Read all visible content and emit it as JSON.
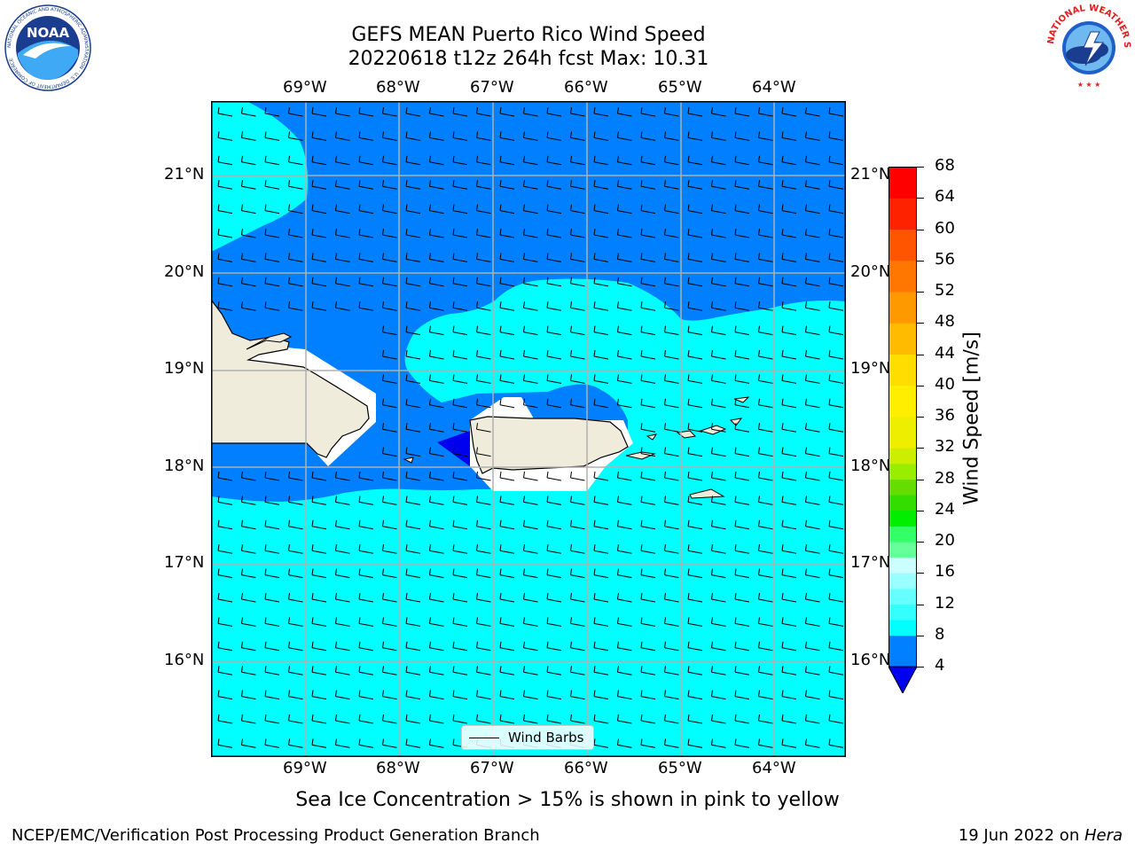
{
  "title": {
    "line1": "GEFS MEAN Puerto Rico Wind Speed",
    "line2": "20220618 t12z 264h fcst   Max: 10.31"
  },
  "logos": {
    "left": {
      "text": "NOAA",
      "ring_text": "NATIONAL OCEANIC AND ATMOSPHERIC ADMINISTRATION · U.S. DEPARTMENT OF COMMERCE"
    },
    "right": {
      "ring_text": "NATIONAL WEATHER SERVICE"
    }
  },
  "map": {
    "lon_ticks": [
      "69°W",
      "68°W",
      "67°W",
      "66°W",
      "65°W",
      "64°W"
    ],
    "lat_ticks": [
      "21°N",
      "20°N",
      "19°N",
      "18°N",
      "17°N",
      "16°N"
    ],
    "extent": {
      "lon_min": -70.0,
      "lon_max": -63.22,
      "lat_min": 15.0,
      "lat_max": 21.75
    },
    "gridlines": true,
    "barbs": {
      "direction_from": "east",
      "spacing_deg": 0.25
    }
  },
  "colorbar": {
    "label": "Wind Speed [m/s]",
    "ticks": [
      "68",
      "64",
      "60",
      "56",
      "52",
      "48",
      "44",
      "40",
      "36",
      "32",
      "28",
      "24",
      "20",
      "16",
      "12",
      "8",
      "4"
    ],
    "levels": [
      4,
      8,
      10,
      12,
      14,
      16,
      18,
      20,
      24,
      28,
      30,
      32,
      36,
      40,
      44,
      48,
      52,
      56,
      60,
      64,
      68
    ],
    "colors": [
      "#0000ee",
      "#0080ff",
      "#00ffff",
      "#33ffff",
      "#66ffff",
      "#99ffff",
      "#ccffff",
      "#66ff99",
      "#33ff66",
      "#00ff00",
      "#33ee00",
      "#66ee00",
      "#99ee00",
      "#ccee00",
      "#eeee00",
      "#ffee00",
      "#ffdd00",
      "#ffbb00",
      "#ff9900",
      "#ff7700",
      "#ff5500",
      "#ff2200",
      "#ff0000"
    ],
    "extend": "min",
    "under_color": "#0000ee"
  },
  "legend": {
    "label": "Wind Barbs"
  },
  "notes": {
    "ice": "Sea Ice Concentration > 15% is shown in pink to yellow",
    "footer_left": "NCEP/EMC/Verification Post Processing Product Generation Branch",
    "footer_date": "19 Jun 2022 on ",
    "footer_host": "Hera"
  },
  "fill_colors": {
    "mid_blue": "#0080ff",
    "cyan": "#00ffff",
    "dark_blue": "#0000ee",
    "land": "#efecdc",
    "mask": "#ffffff"
  }
}
